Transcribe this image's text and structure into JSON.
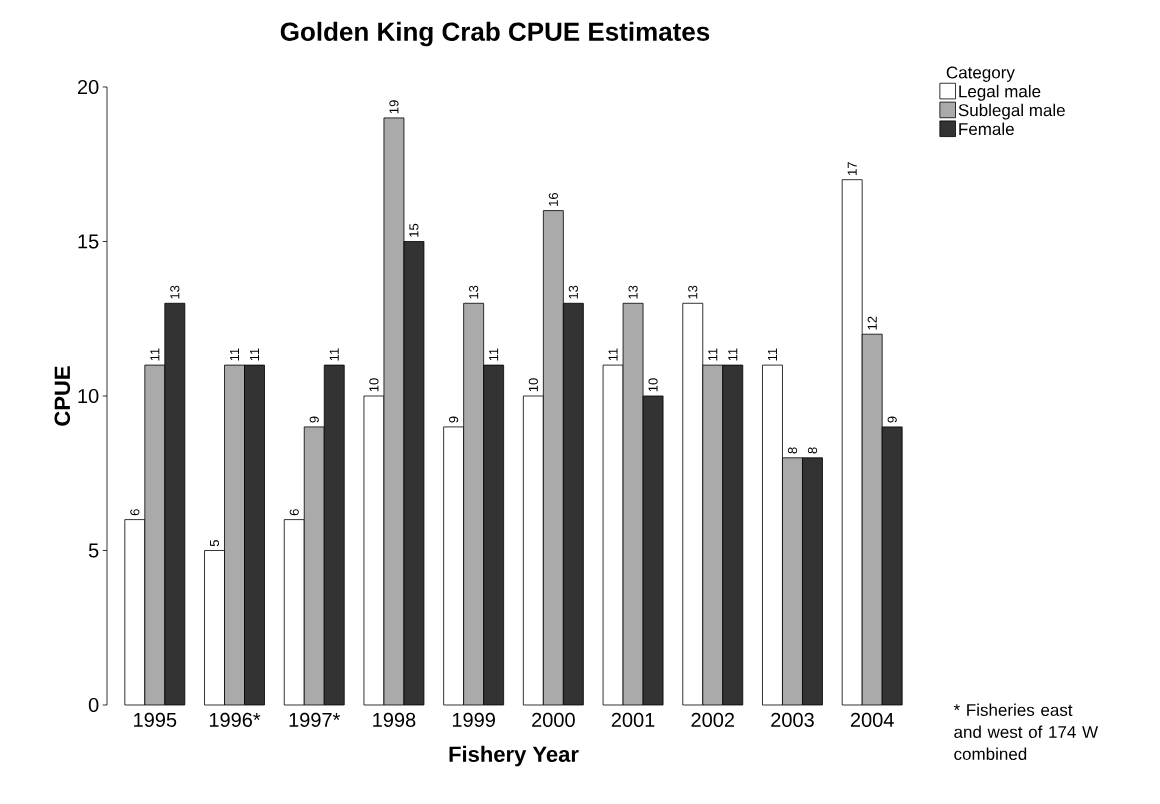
{
  "chart_data": {
    "type": "bar",
    "title": "Golden King Crab CPUE Estimates",
    "xlabel": "Fishery Year",
    "ylabel": "CPUE",
    "legend_title": "Category",
    "categories": [
      "1995",
      "1996*",
      "1997*",
      "1998",
      "1999",
      "2000",
      "2001",
      "2002",
      "2003",
      "2004"
    ],
    "series": [
      {
        "name": "Legal male",
        "color": "#ffffff",
        "values": [
          6,
          5,
          6,
          10,
          9,
          10,
          11,
          13,
          11,
          17
        ]
      },
      {
        "name": "Sublegal male",
        "color": "#aaaaaa",
        "values": [
          11,
          11,
          9,
          19,
          13,
          16,
          13,
          11,
          8,
          12
        ]
      },
      {
        "name": "Female",
        "color": "#333333",
        "values": [
          13,
          11,
          11,
          15,
          11,
          13,
          10,
          11,
          8,
          9
        ]
      }
    ],
    "ylim": [
      0,
      20
    ],
    "yticks": [
      0,
      5,
      10,
      15,
      20
    ],
    "data_labels": true,
    "legend": "top right",
    "annotations": [
      "* Fisheries east and west of 174 W combined"
    ]
  }
}
